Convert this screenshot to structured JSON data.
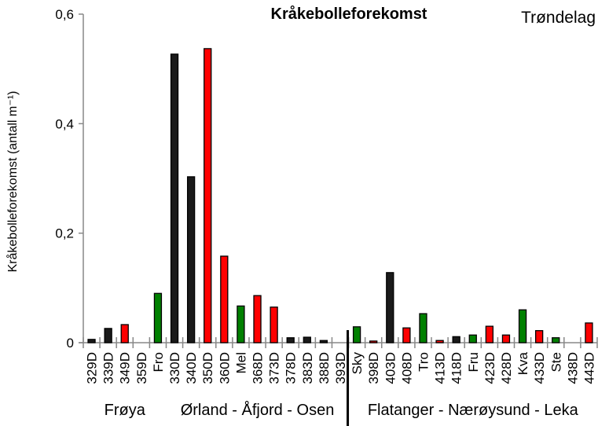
{
  "chart_data": {
    "type": "bar",
    "title": "Kråkebolleforekomst",
    "region_label": "Trøndelag",
    "ylabel": "Kråkebolleforekomst  (antall m⁻¹)",
    "xlabel": "",
    "ylim": [
      0,
      0.6
    ],
    "yticks": [
      "0",
      "0,2",
      "0,4",
      "0,6"
    ],
    "ytick_values": [
      0,
      0.2,
      0.4,
      0.6
    ],
    "grid": false,
    "colors": {
      "black": "#1a1a1a",
      "red": "#ff0000",
      "green": "#008000"
    },
    "categories": [
      "329D",
      "339D",
      "349D",
      "359D",
      "Fro",
      "330D",
      "340D",
      "350D",
      "360D",
      "Mel",
      "368D",
      "373D",
      "378D",
      "383D",
      "388D",
      "393D",
      "Sky",
      "398D",
      "403D",
      "408D",
      "Tro",
      "413D",
      "418D",
      "Fru",
      "423D",
      "428D",
      "Kva",
      "433D",
      "Ste",
      "438D",
      "443D"
    ],
    "values": [
      0.006,
      0.026,
      0.033,
      0,
      0.09,
      0.527,
      0.303,
      0.537,
      0.158,
      0.067,
      0.086,
      0.065,
      0.009,
      0.01,
      0.004,
      0,
      0.029,
      0.003,
      0.128,
      0.027,
      0.053,
      0.004,
      0.011,
      0.014,
      0.03,
      0.014,
      0.06,
      0.022,
      0.009,
      0,
      0.036
    ],
    "bar_colors": [
      "black",
      "black",
      "red",
      "black",
      "green",
      "black",
      "black",
      "red",
      "red",
      "green",
      "red",
      "red",
      "black",
      "black",
      "black",
      "black",
      "green",
      "red",
      "black",
      "red",
      "green",
      "red",
      "black",
      "green",
      "red",
      "red",
      "green",
      "red",
      "green",
      "black",
      "red"
    ],
    "groups": [
      {
        "name": "Frøya",
        "from": 0,
        "to": 4
      },
      {
        "name": "Ørland - Åfjord - Osen",
        "from": 5,
        "to": 15
      },
      {
        "name": "Flatanger - Nærøysund - Leka",
        "from": 16,
        "to": 30
      }
    ]
  }
}
